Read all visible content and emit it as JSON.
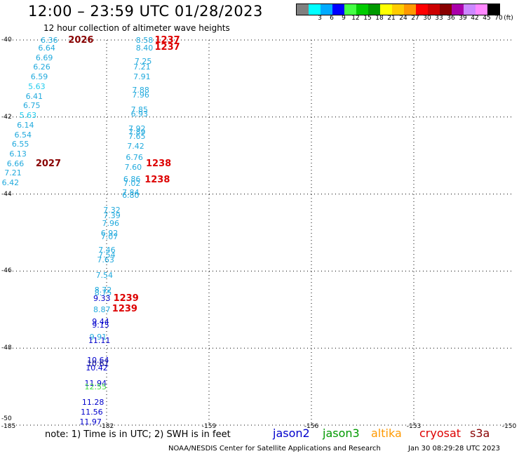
{
  "header": {
    "title": "12:00 – 23:59 UTC 01/28/2023",
    "subtitle": "12 hour collection of altimeter wave heights"
  },
  "legend": {
    "unit": "(ft)",
    "bins": [
      {
        "label": "",
        "color": "#808080"
      },
      {
        "label": "3",
        "color": "#00ffff"
      },
      {
        "label": "6",
        "color": "#00aaff"
      },
      {
        "label": "9",
        "color": "#0000ff"
      },
      {
        "label": "12",
        "color": "#44ff44"
      },
      {
        "label": "15",
        "color": "#00cc00"
      },
      {
        "label": "18",
        "color": "#009900"
      },
      {
        "label": "21",
        "color": "#ffff00"
      },
      {
        "label": "24",
        "color": "#ffcc00"
      },
      {
        "label": "27",
        "color": "#ff9900"
      },
      {
        "label": "30",
        "color": "#ff0000"
      },
      {
        "label": "33",
        "color": "#cc0000"
      },
      {
        "label": "36",
        "color": "#880000"
      },
      {
        "label": "39",
        "color": "#aa00aa"
      },
      {
        "label": "42",
        "color": "#cc88ff"
      },
      {
        "label": "45",
        "color": "#ff88ff"
      },
      {
        "label": "70",
        "color": "#000000"
      }
    ]
  },
  "map": {
    "y_axis": {
      "ticks": [
        "-40",
        "-42",
        "-44",
        "-46",
        "-48",
        "-50"
      ],
      "values": [
        -40,
        -42,
        -44,
        -46,
        -48,
        -50
      ]
    },
    "x_axis": {
      "ticks": [
        "-185",
        "-182",
        "-159",
        "-156",
        "-153",
        "-150"
      ]
    },
    "gridlines": "dotted"
  },
  "wave_heights": [
    {
      "lon": -183.6,
      "lat": -40.0,
      "value": "6.36",
      "color": "#22aadd"
    },
    {
      "lon": -183.7,
      "lat": -40.2,
      "value": "6.64",
      "color": "#22aadd"
    },
    {
      "lon": -183.8,
      "lat": -40.45,
      "value": "6.69",
      "color": "#22aadd"
    },
    {
      "lon": -183.9,
      "lat": -40.7,
      "value": "6.26",
      "color": "#22aadd"
    },
    {
      "lon": -184.0,
      "lat": -40.95,
      "value": "6.59",
      "color": "#22aadd"
    },
    {
      "lon": -184.1,
      "lat": -41.2,
      "value": "5.63",
      "color": "#22ccee"
    },
    {
      "lon": -184.2,
      "lat": -41.45,
      "value": "6.41",
      "color": "#22aadd"
    },
    {
      "lon": -184.3,
      "lat": -41.7,
      "value": "6.75",
      "color": "#22aadd"
    },
    {
      "lon": -184.45,
      "lat": -41.95,
      "value": "5.63",
      "color": "#22ccee"
    },
    {
      "lon": -184.55,
      "lat": -42.2,
      "value": "6.14",
      "color": "#22aadd"
    },
    {
      "lon": -184.65,
      "lat": -42.45,
      "value": "6.54",
      "color": "#22aadd"
    },
    {
      "lon": -184.75,
      "lat": -42.7,
      "value": "6.55",
      "color": "#22aadd"
    },
    {
      "lon": -184.85,
      "lat": -42.95,
      "value": "6.13",
      "color": "#22aadd"
    },
    {
      "lon": -184.95,
      "lat": -43.2,
      "value": "6.66",
      "color": "#22aadd"
    },
    {
      "lon": -185.05,
      "lat": -43.45,
      "value": "7.21",
      "color": "#22aadd"
    },
    {
      "lon": -185.15,
      "lat": -43.7,
      "value": "6.42",
      "color": "#22aadd"
    },
    {
      "lon": -179.8,
      "lat": -40.0,
      "value": "8.58",
      "color": "#22aadd"
    },
    {
      "lon": -179.8,
      "lat": -40.2,
      "value": "8.40",
      "color": "#22aadd"
    },
    {
      "lon": -179.85,
      "lat": -40.55,
      "value": "7.25",
      "color": "#22aadd"
    },
    {
      "lon": -179.9,
      "lat": -40.7,
      "value": "7.21",
      "color": "#22aadd"
    },
    {
      "lon": -179.9,
      "lat": -40.95,
      "value": "7.91",
      "color": "#22aadd"
    },
    {
      "lon": -179.95,
      "lat": -41.3,
      "value": "7.88",
      "color": "#22aadd"
    },
    {
      "lon": -179.95,
      "lat": -41.42,
      "value": "7.96",
      "color": "#22aadd"
    },
    {
      "lon": -180.0,
      "lat": -41.8,
      "value": "7.85",
      "color": "#22aadd"
    },
    {
      "lon": -180.0,
      "lat": -41.92,
      "value": "6.93",
      "color": "#22aadd"
    },
    {
      "lon": -180.1,
      "lat": -42.3,
      "value": "7.92",
      "color": "#22aadd"
    },
    {
      "lon": -180.1,
      "lat": -42.38,
      "value": "7.89",
      "color": "#22aadd"
    },
    {
      "lon": -180.1,
      "lat": -42.5,
      "value": "7.65",
      "color": "#22aadd"
    },
    {
      "lon": -180.15,
      "lat": -42.75,
      "value": "7.42",
      "color": "#22aadd"
    },
    {
      "lon": -180.2,
      "lat": -43.05,
      "value": "6.76",
      "color": "#22aadd"
    },
    {
      "lon": -180.25,
      "lat": -43.3,
      "value": "7.60",
      "color": "#22aadd"
    },
    {
      "lon": -180.3,
      "lat": -43.6,
      "value": "6.86",
      "color": "#22aadd"
    },
    {
      "lon": -180.3,
      "lat": -43.72,
      "value": "7.02",
      "color": "#22aadd"
    },
    {
      "lon": -180.35,
      "lat": -43.95,
      "value": "7.84",
      "color": "#22aadd"
    },
    {
      "lon": -180.35,
      "lat": -44.02,
      "value": "6.80",
      "color": "#22aadd"
    },
    {
      "lon": -181.1,
      "lat": -44.4,
      "value": "7.32",
      "color": "#22aadd"
    },
    {
      "lon": -181.1,
      "lat": -44.55,
      "value": "7.39",
      "color": "#22aadd"
    },
    {
      "lon": -181.15,
      "lat": -44.75,
      "value": "7.96",
      "color": "#22aadd"
    },
    {
      "lon": -181.2,
      "lat": -45.0,
      "value": "6.92",
      "color": "#22aadd"
    },
    {
      "lon": -181.2,
      "lat": -45.1,
      "value": "7.07",
      "color": "#22aadd"
    },
    {
      "lon": -181.3,
      "lat": -45.45,
      "value": "7.46",
      "color": "#22aadd"
    },
    {
      "lon": -181.3,
      "lat": -45.57,
      "value": "7.54",
      "color": "#22aadd"
    },
    {
      "lon": -181.35,
      "lat": -45.7,
      "value": "7.63",
      "color": "#22aadd"
    },
    {
      "lon": -181.4,
      "lat": -46.1,
      "value": "7.54",
      "color": "#22aadd"
    },
    {
      "lon": -181.45,
      "lat": -46.48,
      "value": "8.72",
      "color": "#22aadd"
    },
    {
      "lon": -181.45,
      "lat": -46.55,
      "value": "8.75",
      "color": "#22aadd"
    },
    {
      "lon": -181.5,
      "lat": -46.7,
      "value": "9.33",
      "color": "#0000cc"
    },
    {
      "lon": -181.5,
      "lat": -47.0,
      "value": "8.87",
      "color": "#22aadd"
    },
    {
      "lon": -181.55,
      "lat": -47.3,
      "value": "9.44",
      "color": "#0000cc"
    },
    {
      "lon": -181.55,
      "lat": -47.4,
      "value": "9.15",
      "color": "#0000cc"
    },
    {
      "lon": -181.65,
      "lat": -47.7,
      "value": "9.91",
      "color": "#22aadd"
    },
    {
      "lon": -181.7,
      "lat": -47.8,
      "value": "11.11",
      "color": "#0000cc"
    },
    {
      "lon": -181.75,
      "lat": -48.3,
      "value": "10.64",
      "color": "#0000cc"
    },
    {
      "lon": -181.75,
      "lat": -48.4,
      "value": "10.61",
      "color": "#000080"
    },
    {
      "lon": -181.8,
      "lat": -48.5,
      "value": "10.42",
      "color": "#0000cc"
    },
    {
      "lon": -181.85,
      "lat": -48.9,
      "value": "11.94",
      "color": "#0000cc"
    },
    {
      "lon": -181.85,
      "lat": -49.0,
      "value": "12.55",
      "color": "#44dd44"
    },
    {
      "lon": -181.95,
      "lat": -49.4,
      "value": "11.28",
      "color": "#0000cc"
    },
    {
      "lon": -182.0,
      "lat": -49.65,
      "value": "11.56",
      "color": "#0000cc"
    },
    {
      "lon": -182.05,
      "lat": -49.9,
      "value": "11.97",
      "color": "#0000cc"
    }
  ],
  "pass_labels": [
    {
      "lon": -182.5,
      "lat": -40.0,
      "value": "2026",
      "color": "#880000"
    },
    {
      "lon": -183.8,
      "lat": -43.2,
      "value": "2027",
      "color": "#880000"
    },
    {
      "lon": -179.05,
      "lat": -40.0,
      "value": "1237",
      "color": "#dd0000"
    },
    {
      "lon": -179.05,
      "lat": -40.18,
      "value": "1237",
      "color": "#dd0000"
    },
    {
      "lon": -179.4,
      "lat": -43.2,
      "value": "1238",
      "color": "#dd0000"
    },
    {
      "lon": -179.45,
      "lat": -43.62,
      "value": "1238",
      "color": "#dd0000"
    },
    {
      "lon": -180.7,
      "lat": -46.7,
      "value": "1239",
      "color": "#dd0000"
    },
    {
      "lon": -180.75,
      "lat": -46.98,
      "value": "1239",
      "color": "#dd0000"
    }
  ],
  "footer": {
    "note": "note: 1) Time is in UTC; 2) SWH is in feet",
    "satellites": [
      {
        "name": "jason2",
        "color": "#0000cc"
      },
      {
        "name": "jason3",
        "color": "#009900"
      },
      {
        "name": "altika",
        "color": "#ff9900"
      },
      {
        "name": "cryosat",
        "color": "#dd0000"
      },
      {
        "name": "s3a",
        "color": "#880000"
      }
    ],
    "credit": "NOAA/NESDIS Center for Satellite Applications and Research",
    "timestamp": "Jan 30 08:29:28 UTC 2023"
  }
}
